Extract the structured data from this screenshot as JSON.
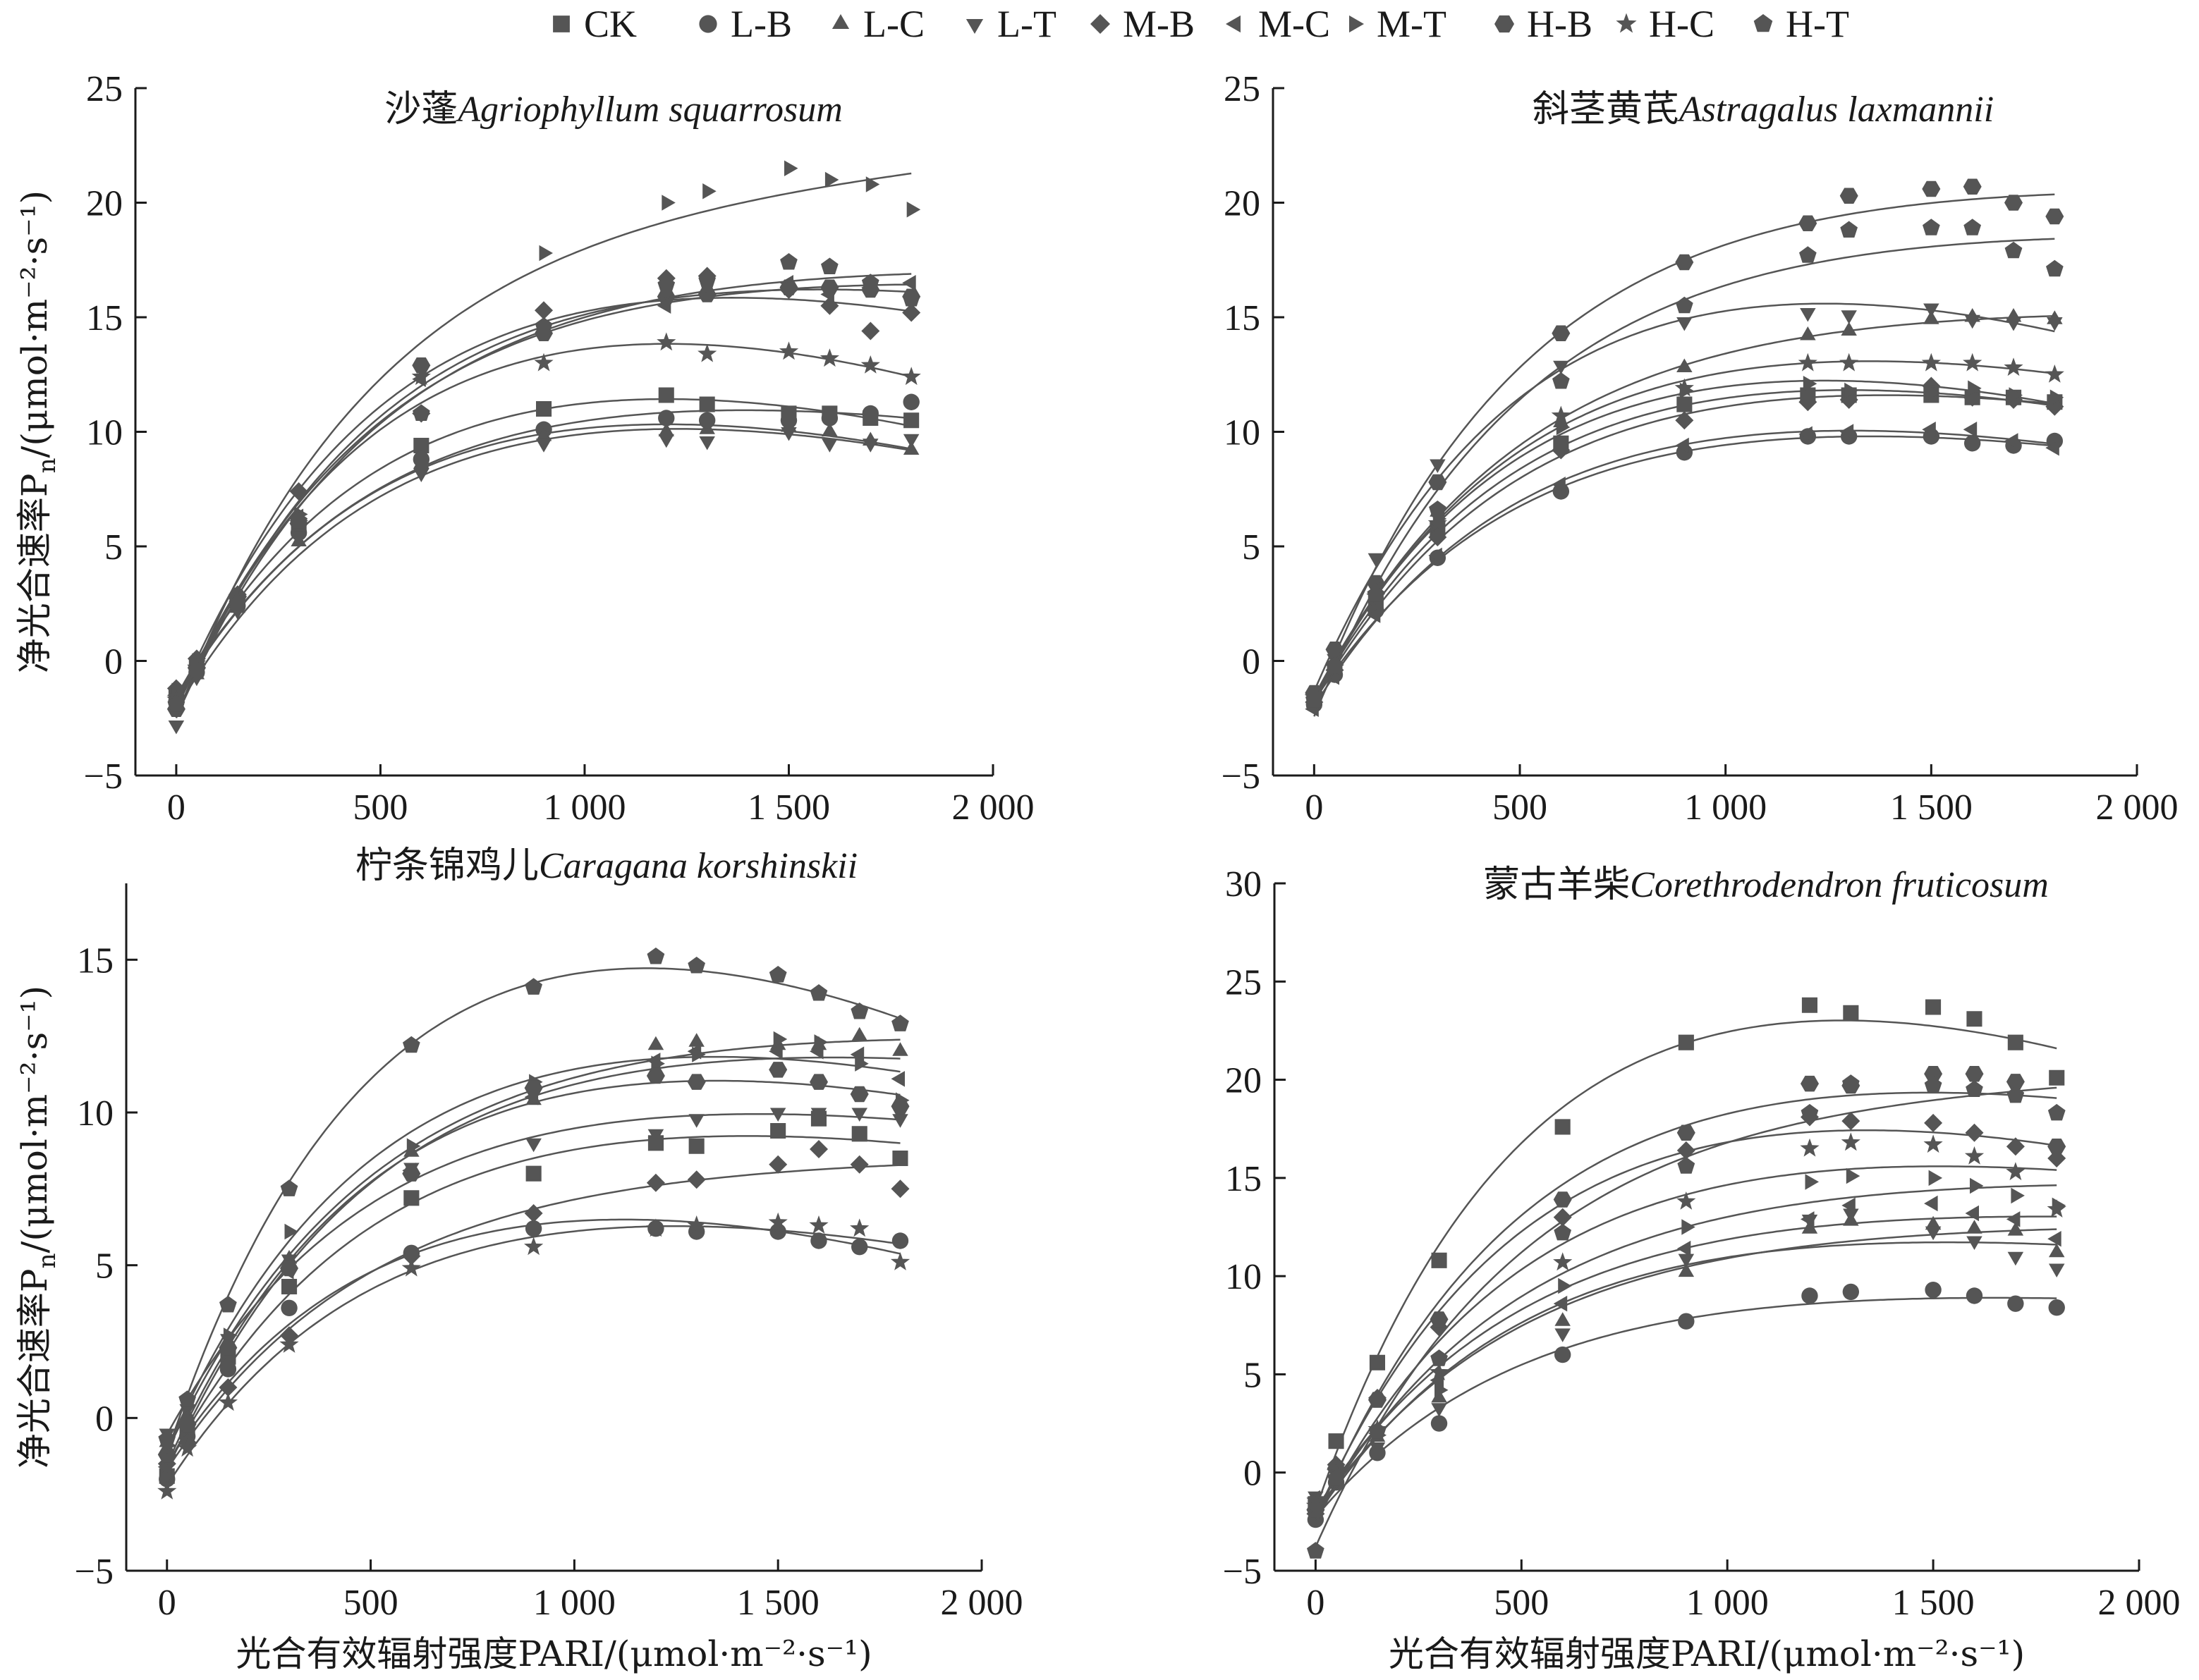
{
  "chart_data": {
    "type": "scatter",
    "legend": {
      "placement": "top",
      "entries": [
        {
          "name": "CK",
          "marker": "square"
        },
        {
          "name": "L-B",
          "marker": "circle"
        },
        {
          "name": "L-C",
          "marker": "triangle-up"
        },
        {
          "name": "L-T",
          "marker": "triangle-down"
        },
        {
          "name": "M-B",
          "marker": "diamond"
        },
        {
          "name": "M-C",
          "marker": "triangle-left"
        },
        {
          "name": "M-T",
          "marker": "triangle-right"
        },
        {
          "name": "H-B",
          "marker": "hexagon"
        },
        {
          "name": "H-C",
          "marker": "star"
        },
        {
          "name": "H-T",
          "marker": "pentagon"
        }
      ]
    },
    "x_values": [
      0,
      50,
      150,
      300,
      600,
      900,
      1200,
      1300,
      1500,
      1600,
      1700,
      1800
    ],
    "panels": [
      {
        "title_cn": "沙蓬",
        "title_latin": "Agriophyllum squarrosum",
        "ylabel": "净光合速率P",
        "ylabel_sub": "n",
        "ylabel_unit": "/(μmol·m⁻²·s⁻¹)",
        "xlabel": "",
        "xlim": [
          -100,
          2000
        ],
        "ylim": [
          -5,
          25
        ],
        "xticks": [
          0,
          500,
          1000,
          1500,
          2000
        ],
        "xtick_labels": [
          "0",
          "500",
          "1 000",
          "1 500",
          "2 000"
        ],
        "yticks": [
          -5,
          0,
          5,
          10,
          15,
          20,
          25
        ],
        "ytick_labels": [
          "−5",
          "0",
          "5",
          "10",
          "15",
          "20",
          "25"
        ],
        "series": [
          {
            "name": "CK",
            "values": [
              -1.5,
              -0.2,
              2.6,
              5.8,
              9.4,
              11.0,
              11.6,
              11.2,
              10.8,
              10.8,
              10.6,
              10.5
            ]
          },
          {
            "name": "L-B",
            "values": [
              -1.8,
              -0.5,
              2.4,
              5.6,
              8.8,
              10.1,
              10.6,
              10.5,
              10.5,
              10.6,
              10.8,
              11.3
            ]
          },
          {
            "name": "L-C",
            "values": [
              -1.6,
              -0.6,
              2.3,
              5.2,
              8.6,
              9.8,
              10.0,
              10.1,
              10.2,
              10.0,
              9.6,
              9.2
            ]
          },
          {
            "name": "L-T",
            "values": [
              -2.8,
              -0.7,
              2.2,
              5.4,
              8.2,
              9.5,
              9.7,
              9.6,
              10.0,
              9.5,
              9.5,
              9.7
            ]
          },
          {
            "name": "M-B",
            "values": [
              -1.2,
              0.1,
              2.9,
              7.4,
              10.8,
              15.3,
              16.7,
              16.8,
              16.2,
              15.5,
              14.4,
              15.2
            ]
          },
          {
            "name": "M-C",
            "values": [
              -1.5,
              -0.2,
              2.7,
              6.3,
              12.3,
              14.3,
              15.5,
              16.1,
              16.5,
              16.0,
              16.3,
              16.5
            ]
          },
          {
            "name": "M-T",
            "values": [
              -1.3,
              0.0,
              2.9,
              6.4,
              12.9,
              17.8,
              20.0,
              20.5,
              21.5,
              21.0,
              20.8,
              19.7
            ]
          },
          {
            "name": "H-B",
            "values": [
              -2.1,
              -0.3,
              2.8,
              6.0,
              12.9,
              14.3,
              15.9,
              16.0,
              16.3,
              16.3,
              16.2,
              15.9
            ]
          },
          {
            "name": "H-C",
            "values": [
              -1.7,
              -0.3,
              2.7,
              6.0,
              12.4,
              13.0,
              13.9,
              13.4,
              13.5,
              13.2,
              12.9,
              12.4
            ]
          },
          {
            "name": "H-T",
            "values": [
              -1.9,
              -0.4,
              2.5,
              6.1,
              10.8,
              14.6,
              16.4,
              16.6,
              17.4,
              17.2,
              16.5,
              15.8
            ]
          }
        ]
      },
      {
        "title_cn": "斜茎黄芪",
        "title_latin": "Astragalus laxmannii",
        "ylabel": "",
        "ylabel_sub": "",
        "ylabel_unit": "",
        "xlabel": "",
        "xlim": [
          -100,
          2000
        ],
        "ylim": [
          -5,
          25
        ],
        "xticks": [
          0,
          500,
          1000,
          1500,
          2000
        ],
        "xtick_labels": [
          "0",
          "500",
          "1 000",
          "1 500",
          "2 000"
        ],
        "yticks": [
          -5,
          0,
          5,
          10,
          15,
          20,
          25
        ],
        "ytick_labels": [
          "−5",
          "0",
          "5",
          "10",
          "15",
          "20",
          "25"
        ],
        "series": [
          {
            "name": "CK",
            "values": [
              -1.7,
              -0.4,
              2.6,
              5.8,
              9.5,
              11.2,
              11.6,
              11.6,
              11.6,
              11.5,
              11.5,
              11.3
            ]
          },
          {
            "name": "L-B",
            "values": [
              -1.9,
              -0.6,
              2.2,
              4.5,
              7.4,
              9.1,
              9.8,
              9.8,
              9.8,
              9.5,
              9.4,
              9.6
            ]
          },
          {
            "name": "L-C",
            "values": [
              -1.6,
              -0.2,
              2.9,
              6.5,
              10.4,
              12.8,
              14.2,
              14.4,
              14.9,
              15.0,
              15.0,
              14.9
            ]
          },
          {
            "name": "L-T",
            "values": [
              -1.5,
              0.1,
              4.5,
              8.6,
              12.9,
              14.8,
              15.2,
              15.1,
              15.4,
              14.9,
              14.8,
              14.8
            ]
          },
          {
            "name": "M-B",
            "values": [
              -1.8,
              -0.4,
              2.2,
              5.4,
              9.2,
              10.5,
              11.3,
              11.4,
              12.0,
              11.5,
              11.4,
              11.1
            ]
          },
          {
            "name": "M-C",
            "values": [
              -2.1,
              -0.7,
              2.0,
              4.6,
              7.7,
              9.4,
              9.9,
              10.0,
              10.1,
              10.1,
              9.6,
              9.3
            ]
          },
          {
            "name": "M-T",
            "values": [
              -1.5,
              -0.1,
              2.7,
              6.2,
              10.2,
              11.8,
              12.1,
              11.8,
              11.7,
              11.9,
              11.6,
              11.5
            ]
          },
          {
            "name": "H-B",
            "values": [
              -1.4,
              0.5,
              3.4,
              7.8,
              14.3,
              17.4,
              19.1,
              20.3,
              20.6,
              20.7,
              20.0,
              19.4
            ]
          },
          {
            "name": "H-C",
            "values": [
              -1.6,
              -0.3,
              2.8,
              6.0,
              10.7,
              11.9,
              13.0,
              13.0,
              13.0,
              13.0,
              12.8,
              12.5
            ]
          },
          {
            "name": "H-T",
            "values": [
              -1.7,
              -0.2,
              2.9,
              6.6,
              12.2,
              15.5,
              17.7,
              18.8,
              18.9,
              18.9,
              17.9,
              17.1
            ]
          }
        ]
      },
      {
        "title_cn": "柠条锦鸡儿",
        "title_latin": "Caragana korshinskii",
        "ylabel": "净光合速率P",
        "ylabel_sub": "n",
        "ylabel_unit": "/(μmol·m⁻²·s⁻¹)",
        "xlabel": "光合有效辐射强度PARI/(μmol·m⁻²·s⁻¹)",
        "xlim": [
          -100,
          2000
        ],
        "ylim": [
          -5,
          17.5
        ],
        "xticks": [
          0,
          500,
          1000,
          1500,
          2000
        ],
        "xtick_labels": [
          "0",
          "500",
          "1 000",
          "1 500",
          "2 000"
        ],
        "yticks": [
          -5,
          0,
          5,
          10,
          15
        ],
        "ytick_labels": [
          "−5",
          "0",
          "5",
          "10",
          "15"
        ],
        "series": [
          {
            "name": "CK",
            "values": [
              -1.9,
              -0.4,
              2.0,
              4.3,
              7.2,
              8.0,
              9.0,
              8.9,
              9.4,
              9.8,
              9.3,
              8.5
            ]
          },
          {
            "name": "L-B",
            "values": [
              -2.0,
              -0.6,
              1.6,
              3.6,
              5.4,
              6.2,
              6.2,
              6.1,
              6.1,
              5.8,
              5.6,
              5.8
            ]
          },
          {
            "name": "L-C",
            "values": [
              -0.8,
              0.1,
              2.5,
              5.2,
              8.7,
              10.4,
              12.2,
              12.3,
              12.2,
              12.2,
              12.5,
              12.0
            ]
          },
          {
            "name": "L-T",
            "values": [
              -0.5,
              0.3,
              2.6,
              5.2,
              8.2,
              9.0,
              9.3,
              9.8,
              10.0,
              10.0,
              10.0,
              9.8
            ]
          },
          {
            "name": "M-B",
            "values": [
              -1.5,
              -0.8,
              1.0,
              2.7,
              5.3,
              6.7,
              7.7,
              7.8,
              8.3,
              8.8,
              8.3,
              7.5
            ]
          },
          {
            "name": "M-C",
            "values": [
              -1.6,
              -0.3,
              2.3,
              4.8,
              8.1,
              10.5,
              11.7,
              12.0,
              12.0,
              12.0,
              11.9,
              11.1
            ]
          },
          {
            "name": "M-T",
            "values": [
              -0.9,
              0.4,
              2.7,
              6.1,
              8.9,
              11.0,
              11.6,
              11.9,
              12.4,
              12.3,
              11.6,
              10.4
            ]
          },
          {
            "name": "H-B",
            "values": [
              -1.2,
              -0.2,
              2.3,
              4.9,
              8.0,
              10.8,
              11.2,
              11.0,
              11.4,
              11.0,
              10.6,
              10.2
            ]
          },
          {
            "name": "H-C",
            "values": [
              -2.4,
              -1.0,
              0.5,
              2.4,
              4.9,
              5.6,
              6.2,
              6.3,
              6.4,
              6.3,
              6.2,
              5.1
            ]
          },
          {
            "name": "H-T",
            "values": [
              -0.7,
              0.6,
              3.7,
              7.5,
              12.2,
              14.1,
              15.1,
              14.8,
              14.5,
              13.9,
              13.3,
              12.9
            ]
          }
        ]
      },
      {
        "title_cn": "蒙古羊柴",
        "title_latin": "Corethrodendron fruticosum",
        "ylabel": "",
        "ylabel_sub": "",
        "ylabel_unit": "",
        "xlabel": "光合有效辐射强度PARI/(μmol·m⁻²·s⁻¹)",
        "xlim": [
          -100,
          2000
        ],
        "ylim": [
          -5,
          30
        ],
        "xticks": [
          0,
          500,
          1000,
          1500,
          2000
        ],
        "xtick_labels": [
          "0",
          "500",
          "1 000",
          "1 500",
          "2 000"
        ],
        "yticks": [
          -5,
          0,
          5,
          10,
          15,
          20,
          25,
          30
        ],
        "ytick_labels": [
          "−5",
          "0",
          "5",
          "10",
          "15",
          "20",
          "25",
          "30"
        ],
        "series": [
          {
            "name": "CK",
            "values": [
              -1.6,
              1.6,
              5.6,
              10.8,
              17.6,
              21.9,
              23.8,
              23.4,
              23.7,
              23.1,
              21.9,
              20.1
            ]
          },
          {
            "name": "L-B",
            "values": [
              -2.4,
              -0.5,
              1.0,
              2.5,
              6.0,
              7.7,
              9.0,
              9.2,
              9.3,
              9.0,
              8.6,
              8.4
            ]
          },
          {
            "name": "L-C",
            "values": [
              -1.6,
              -0.3,
              1.8,
              3.8,
              7.7,
              10.2,
              12.4,
              12.8,
              12.6,
              12.4,
              12.3,
              11.2
            ]
          },
          {
            "name": "L-T",
            "values": [
              -1.2,
              -0.4,
              1.3,
              3.3,
              7.1,
              10.9,
              12.9,
              13.2,
              12.3,
              11.8,
              11.0,
              10.4
            ]
          },
          {
            "name": "M-B",
            "values": [
              -2.1,
              0.4,
              3.8,
              7.4,
              13.0,
              16.4,
              18.1,
              17.9,
              17.8,
              17.3,
              16.6,
              16.0
            ]
          },
          {
            "name": "M-C",
            "values": [
              -1.3,
              -0.2,
              2.0,
              4.7,
              8.6,
              11.4,
              12.9,
              13.6,
              13.7,
              13.2,
              12.9,
              11.9
            ]
          },
          {
            "name": "M-T",
            "values": [
              -1.5,
              -0.2,
              1.9,
              4.2,
              9.5,
              12.5,
              14.8,
              15.1,
              15.0,
              14.6,
              14.1,
              13.6
            ]
          },
          {
            "name": "H-B",
            "values": [
              -1.9,
              0.2,
              3.7,
              7.8,
              13.9,
              17.3,
              19.8,
              19.7,
              20.3,
              20.3,
              19.9,
              16.6
            ]
          },
          {
            "name": "H-C",
            "values": [
              -1.7,
              0.0,
              2.2,
              5.1,
              10.7,
              13.8,
              16.5,
              16.8,
              16.7,
              16.1,
              15.3,
              13.4
            ]
          },
          {
            "name": "H-T",
            "values": [
              -4.0,
              -0.3,
              2.1,
              5.8,
              12.2,
              15.6,
              18.3,
              19.8,
              19.7,
              19.5,
              19.2,
              18.3
            ]
          }
        ]
      }
    ]
  }
}
